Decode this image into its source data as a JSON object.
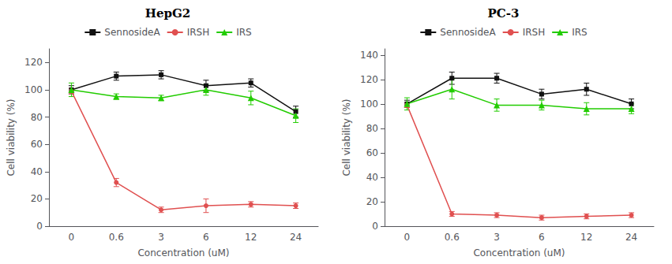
{
  "chart_data": [
    {
      "type": "line",
      "title": "HepG2",
      "xlabel": "Concentration (uM)",
      "ylabel": "Cell viability (%)",
      "categories": [
        "0",
        "0.6",
        "3",
        "6",
        "12",
        "24"
      ],
      "series": [
        {
          "name": "SennosideA",
          "color": "#111111",
          "marker": "square",
          "values": [
            100,
            110,
            111,
            103,
            105,
            84
          ],
          "errors": [
            3,
            3,
            3,
            4,
            3,
            4
          ]
        },
        {
          "name": "IRSH",
          "color": "#e05050",
          "marker": "circle",
          "values": [
            99,
            32,
            12,
            15,
            16,
            15
          ],
          "errors": [
            2,
            3,
            2,
            5,
            2,
            2
          ]
        },
        {
          "name": "IRS",
          "color": "#22cc00",
          "marker": "triangle",
          "values": [
            100,
            95,
            94,
            100,
            94,
            81
          ],
          "errors": [
            5,
            2,
            2,
            4,
            5,
            5
          ]
        }
      ],
      "ylim": [
        0,
        130
      ],
      "yticks": [
        0,
        20,
        40,
        60,
        80,
        100,
        120
      ],
      "legend": "top",
      "grid": false
    },
    {
      "type": "line",
      "title": "PC-3",
      "xlabel": "Concentration (uM)",
      "ylabel": "Cell viability (%)",
      "categories": [
        "0",
        "0.6",
        "3",
        "6",
        "12",
        "24"
      ],
      "series": [
        {
          "name": "SennosideA",
          "color": "#111111",
          "marker": "square",
          "values": [
            100,
            121,
            121,
            108,
            112,
            100
          ],
          "errors": [
            3,
            5,
            4,
            4,
            5,
            4
          ]
        },
        {
          "name": "IRSH",
          "color": "#e05050",
          "marker": "circle",
          "values": [
            99,
            10,
            9,
            7,
            8,
            9
          ],
          "errors": [
            2,
            2,
            2,
            2,
            2,
            2
          ]
        },
        {
          "name": "IRS",
          "color": "#22cc00",
          "marker": "triangle",
          "values": [
            100,
            112,
            99,
            99,
            96,
            96
          ],
          "errors": [
            5,
            8,
            5,
            4,
            5,
            4
          ]
        }
      ],
      "ylim": [
        0,
        145
      ],
      "yticks": [
        0,
        20,
        40,
        60,
        80,
        100,
        120,
        140
      ],
      "legend": "top",
      "grid": false
    }
  ]
}
